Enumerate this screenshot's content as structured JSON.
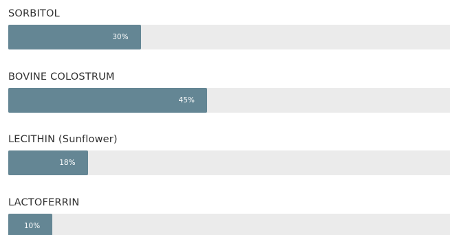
{
  "ingredients": [
    {
      "label": "SORBITOL",
      "percent": 30,
      "percent_text": "30%"
    },
    {
      "label": "BOVINE COLOSTRUM",
      "percent": 45,
      "percent_text": "45%"
    },
    {
      "label": "LECITHIN (Sunflower)",
      "percent": 18,
      "percent_text": "18%"
    },
    {
      "label": "LACTOFERRIN",
      "percent": 10,
      "percent_text": "10%"
    }
  ],
  "colors": {
    "bar_fill": "#648694",
    "bar_track": "#ebebeb",
    "label_text": "#2f2f2f",
    "percent_text": "#ffffff"
  }
}
